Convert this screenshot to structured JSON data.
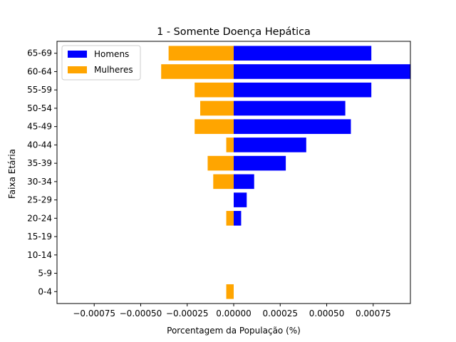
{
  "chart_data": {
    "type": "bar",
    "orientation": "horizontal",
    "title": "1 - Somente Doença Hepática",
    "xlabel": "Porcentagem da População (%)",
    "ylabel": "Faixa Etária",
    "categories": [
      "0-4",
      "5-9",
      "10-14",
      "15-19",
      "20-24",
      "25-29",
      "30-34",
      "35-39",
      "40-44",
      "45-49",
      "50-54",
      "55-59",
      "60-64",
      "65-69"
    ],
    "series": [
      {
        "name": "Homens",
        "color": "#0000ff",
        "values": [
          0,
          0,
          0,
          0,
          4e-05,
          7e-05,
          0.00011,
          0.00028,
          0.00039,
          0.00063,
          0.0006,
          0.00074,
          0.00096,
          0.00074
        ]
      },
      {
        "name": "Mulheres",
        "color": "#ffa500",
        "values": [
          -4e-05,
          0,
          0,
          0,
          -4e-05,
          0,
          -0.00011,
          -0.00014,
          -4e-05,
          -0.00021,
          -0.00018,
          -0.00021,
          -0.00039,
          -0.00035
        ]
      }
    ],
    "xlim": [
      -0.00095,
      0.00095
    ],
    "xticks": [
      -0.00075,
      -0.0005,
      -0.00025,
      0,
      0.00025,
      0.0005,
      0.00075
    ],
    "xtick_labels": [
      "−0.00075",
      "−0.00050",
      "−0.00025",
      "0.00000",
      "0.00025",
      "0.00050",
      "0.00075"
    ],
    "grid": false,
    "legend_position": "top-left"
  }
}
